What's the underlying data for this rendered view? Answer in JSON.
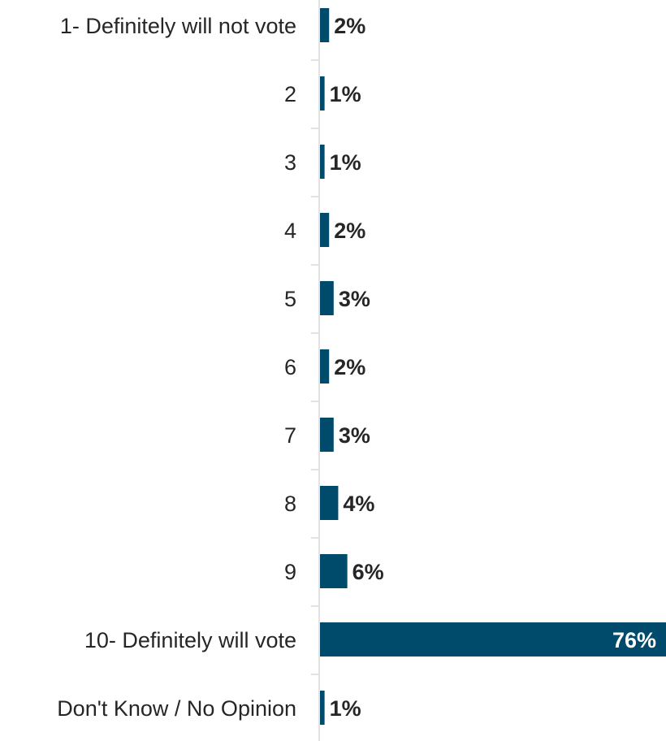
{
  "chart_data": {
    "type": "bar",
    "orientation": "horizontal",
    "categories": [
      "1- Definitely will not vote",
      "2",
      "3",
      "4",
      "5",
      "6",
      "7",
      "8",
      "9",
      "10- Definitely will vote",
      "Don't Know / No Opinion"
    ],
    "values": [
      2,
      1,
      1,
      2,
      3,
      2,
      3,
      4,
      6,
      76,
      1
    ],
    "value_labels": [
      "2%",
      "1%",
      "1%",
      "2%",
      "3%",
      "2%",
      "3%",
      "4%",
      "6%",
      "76%",
      "1%"
    ],
    "xlim": [
      0,
      76
    ],
    "grid": false,
    "legend": "none",
    "colors": {
      "bar": "#004b6b",
      "label_text": "#262626",
      "axis_line": "#d9d9d9",
      "inside_label": "#ffffff"
    }
  }
}
